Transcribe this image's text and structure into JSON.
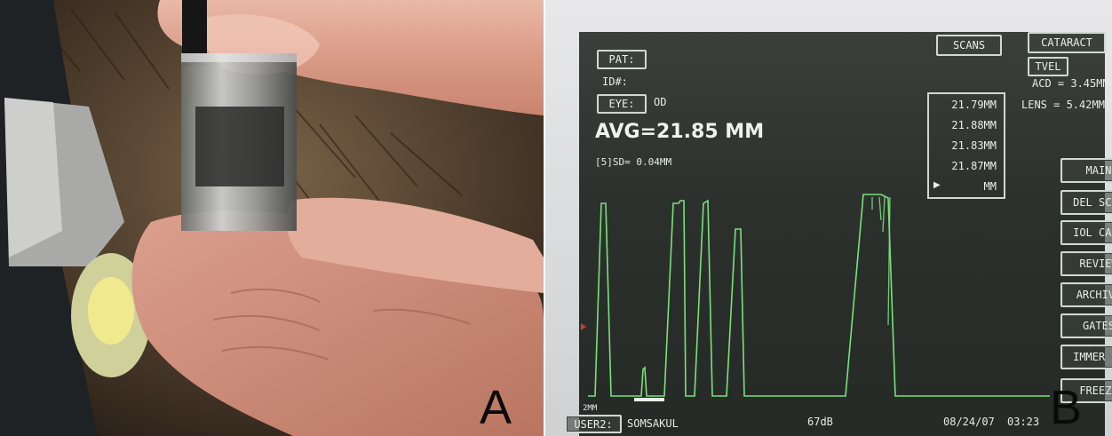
{
  "panels": {
    "left_label": "A",
    "right_label": "B"
  },
  "screen": {
    "pat_label": "PAT:",
    "id_label": "ID#:",
    "eye_label": "EYE:",
    "eye_value": "OD",
    "avg_text": "AVG=21.85 MM",
    "sd_text": "[5]SD= 0.04MM",
    "scans_label": "SCANS",
    "measurements": [
      "21.79MM",
      "21.88MM",
      "21.83MM",
      "21.87MM"
    ],
    "measure_unit": "MM",
    "mode_label": "CATARACT",
    "tvel_label": "TVEL",
    "acd_text": "ACD =  3.45MM",
    "lens_text": "LENS =  5.42MM",
    "menu": [
      "MAIN",
      "DEL SCAN",
      "IOL CALC",
      "REVIEW",
      "ARCHIVE",
      "GATES",
      "IMMER ON",
      "FREEZE"
    ],
    "scale_label": "2MM",
    "user_label": "USER2:",
    "user_name": "SOMSAKUL",
    "gain": "67dB",
    "date": "08/24/07",
    "time": "03:23"
  },
  "colors": {
    "waveform": "#7be07a",
    "screen_bg": "#2f3330",
    "button_border": "#cfd8d2"
  }
}
